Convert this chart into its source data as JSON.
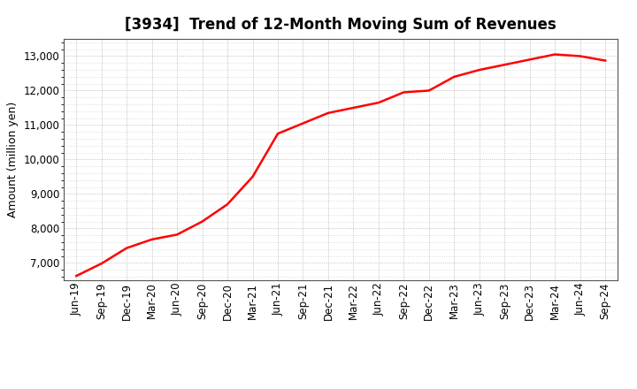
{
  "title": "[3934]  Trend of 12-Month Moving Sum of Revenues",
  "ylabel": "Amount (million yen)",
  "line_color": "#ff0000",
  "line_width": 1.8,
  "background_color": "#ffffff",
  "plot_bg_color": "#ffffff",
  "grid_color": "#999999",
  "ylim": [
    6500,
    13500
  ],
  "yticks": [
    7000,
    8000,
    9000,
    10000,
    11000,
    12000,
    13000
  ],
  "x_labels": [
    "Jun-19",
    "Sep-19",
    "Dec-19",
    "Mar-20",
    "Jun-20",
    "Sep-20",
    "Dec-20",
    "Mar-21",
    "Jun-21",
    "Sep-21",
    "Dec-21",
    "Mar-22",
    "Jun-22",
    "Sep-22",
    "Dec-22",
    "Mar-23",
    "Jun-23",
    "Sep-23",
    "Dec-23",
    "Mar-24",
    "Jun-24",
    "Sep-24"
  ],
  "values": [
    6620,
    6980,
    7430,
    7680,
    7820,
    8200,
    8700,
    9500,
    10750,
    11050,
    11350,
    11500,
    11650,
    11950,
    12000,
    12400,
    12600,
    12750,
    12900,
    13050,
    13000,
    12870
  ],
  "title_fontsize": 12,
  "ylabel_fontsize": 9,
  "tick_fontsize": 8.5
}
